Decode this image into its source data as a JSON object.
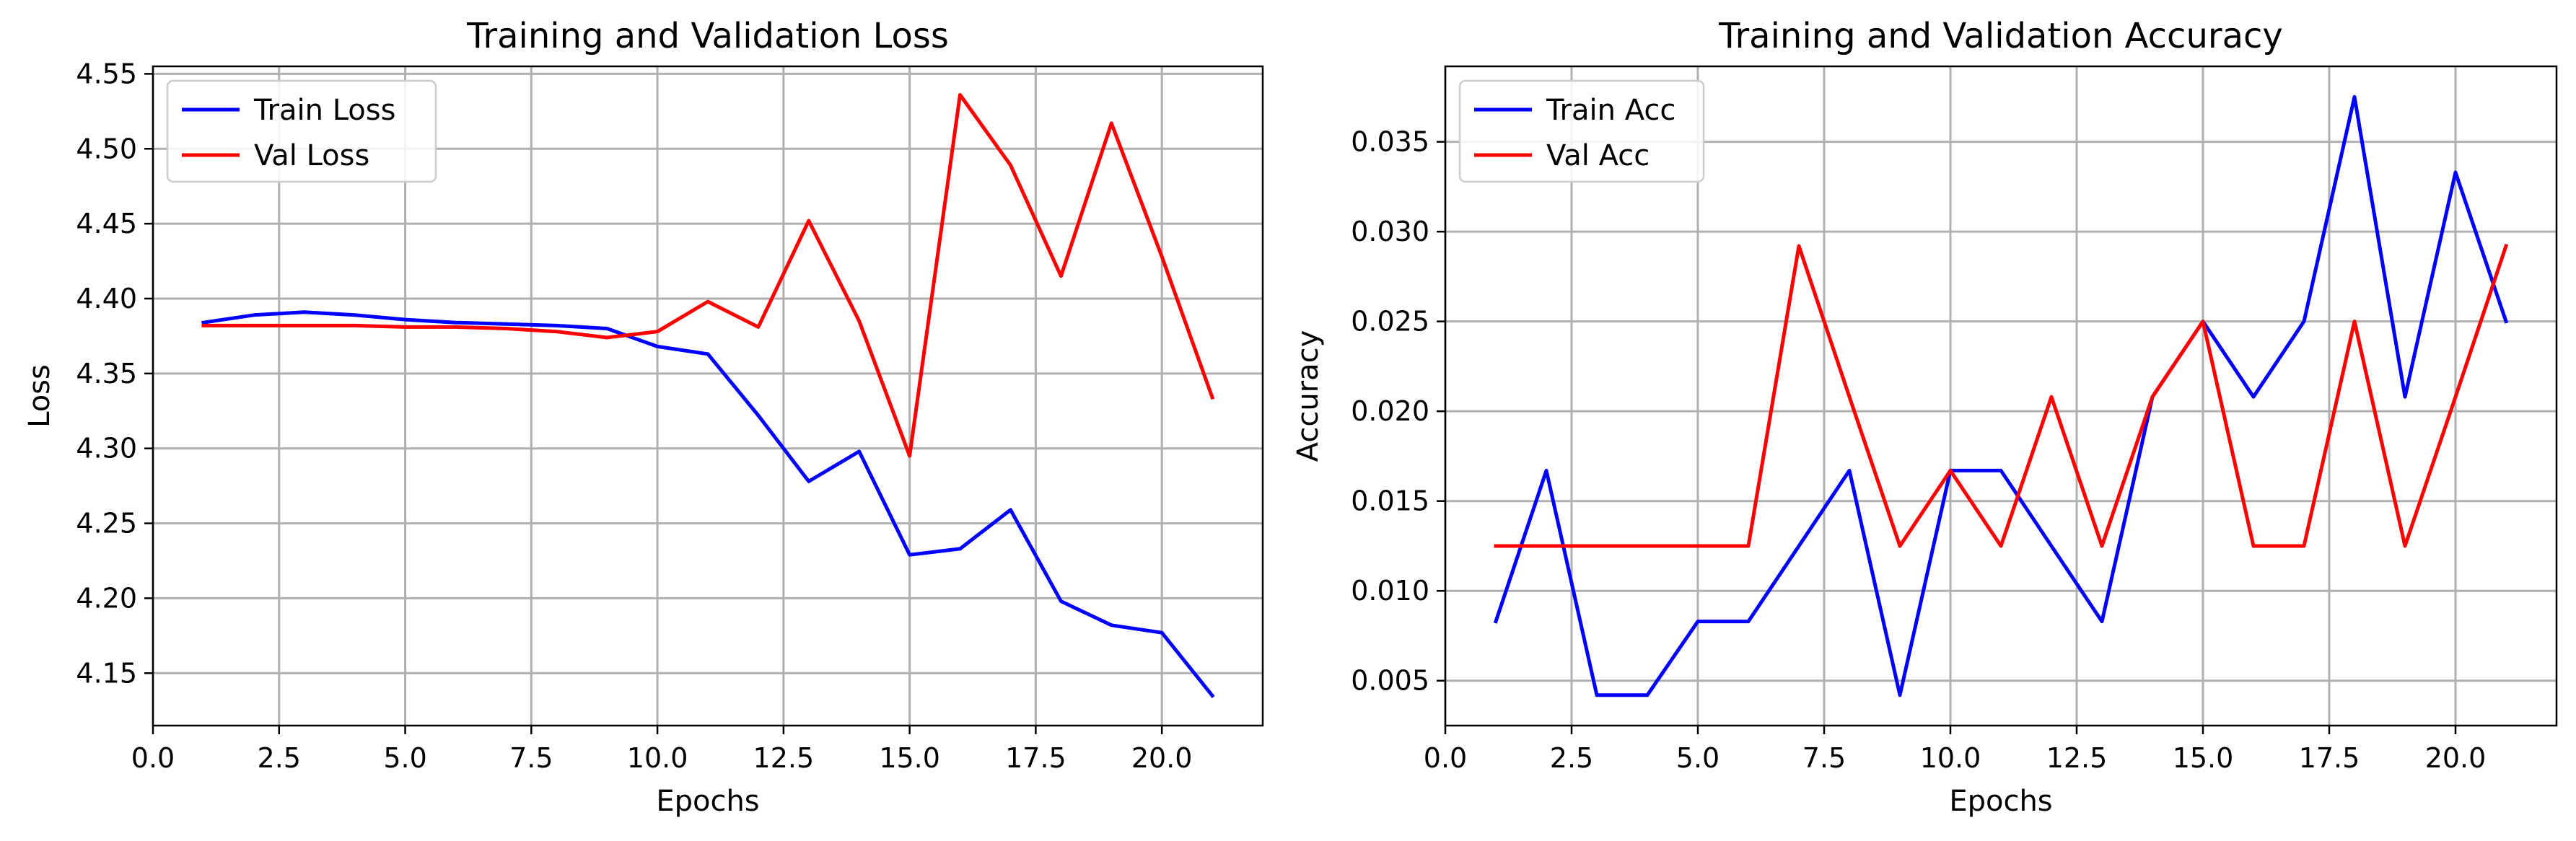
{
  "colors": {
    "train": "#0000ff",
    "val": "#ff0000",
    "grid": "#b0b0b0"
  },
  "chart_data": [
    {
      "type": "line",
      "title": "Training and Validation Loss",
      "xlabel": "Epochs",
      "ylabel": "Loss",
      "xlim": [
        0,
        22.0
      ],
      "ylim": [
        4.115,
        4.555
      ],
      "xticks": [
        0.0,
        2.5,
        5.0,
        7.5,
        10.0,
        12.5,
        15.0,
        17.5,
        20.0
      ],
      "xtick_labels": [
        "0.0",
        "2.5",
        "5.0",
        "7.5",
        "10.0",
        "12.5",
        "15.0",
        "17.5",
        "20.0"
      ],
      "yticks": [
        4.15,
        4.2,
        4.25,
        4.3,
        4.35,
        4.4,
        4.45,
        4.5,
        4.55
      ],
      "ytick_labels": [
        "4.15",
        "4.20",
        "4.25",
        "4.30",
        "4.35",
        "4.40",
        "4.45",
        "4.50",
        "4.55"
      ],
      "grid": true,
      "legend_position": "upper left",
      "x": [
        1,
        2,
        3,
        4,
        5,
        6,
        7,
        8,
        9,
        10,
        11,
        12,
        13,
        14,
        15,
        16,
        17,
        18,
        19,
        20,
        21
      ],
      "series": [
        {
          "name": "Train Loss",
          "color": "#0000ff",
          "values": [
            4.384,
            4.389,
            4.391,
            4.389,
            4.386,
            4.384,
            4.383,
            4.382,
            4.38,
            4.368,
            4.363,
            4.322,
            4.278,
            4.298,
            4.229,
            4.233,
            4.259,
            4.198,
            4.182,
            4.177,
            4.135
          ]
        },
        {
          "name": "Val Loss",
          "color": "#ff0000",
          "values": [
            4.382,
            4.382,
            4.382,
            4.382,
            4.381,
            4.381,
            4.38,
            4.378,
            4.374,
            4.378,
            4.398,
            4.381,
            4.452,
            4.385,
            4.295,
            4.536,
            4.489,
            4.415,
            4.517,
            4.428,
            4.334
          ]
        }
      ]
    },
    {
      "type": "line",
      "title": "Training and Validation Accuracy",
      "xlabel": "Epochs",
      "ylabel": "Accuracy",
      "xlim": [
        0,
        22.0
      ],
      "ylim": [
        0.0025,
        0.0392
      ],
      "xticks": [
        0.0,
        2.5,
        5.0,
        7.5,
        10.0,
        12.5,
        15.0,
        17.5,
        20.0
      ],
      "xtick_labels": [
        "0.0",
        "2.5",
        "5.0",
        "7.5",
        "10.0",
        "12.5",
        "15.0",
        "17.5",
        "20.0"
      ],
      "yticks": [
        0.005,
        0.01,
        0.015,
        0.02,
        0.025,
        0.03,
        0.035
      ],
      "ytick_labels": [
        "0.005",
        "0.010",
        "0.015",
        "0.020",
        "0.025",
        "0.030",
        "0.035"
      ],
      "grid": true,
      "legend_position": "upper left",
      "x": [
        1,
        2,
        3,
        4,
        5,
        6,
        7,
        8,
        9,
        10,
        11,
        12,
        13,
        14,
        15,
        16,
        17,
        18,
        19,
        20,
        21
      ],
      "series": [
        {
          "name": "Train Acc",
          "color": "#0000ff",
          "values": [
            0.0083,
            0.0167,
            0.0042,
            0.0042,
            0.0083,
            0.0083,
            0.0125,
            0.0167,
            0.0042,
            0.0167,
            0.0167,
            0.0125,
            0.0083,
            0.0208,
            0.025,
            0.0208,
            0.025,
            0.0375,
            0.0208,
            0.0333,
            0.025
          ]
        },
        {
          "name": "Val Acc",
          "color": "#ff0000",
          "values": [
            0.0125,
            0.0125,
            0.0125,
            0.0125,
            0.0125,
            0.0125,
            0.0292,
            0.0208,
            0.0125,
            0.0167,
            0.0125,
            0.0208,
            0.0125,
            0.0208,
            0.025,
            0.0125,
            0.0125,
            0.025,
            0.0125,
            0.0208,
            0.0292
          ]
        }
      ]
    }
  ]
}
